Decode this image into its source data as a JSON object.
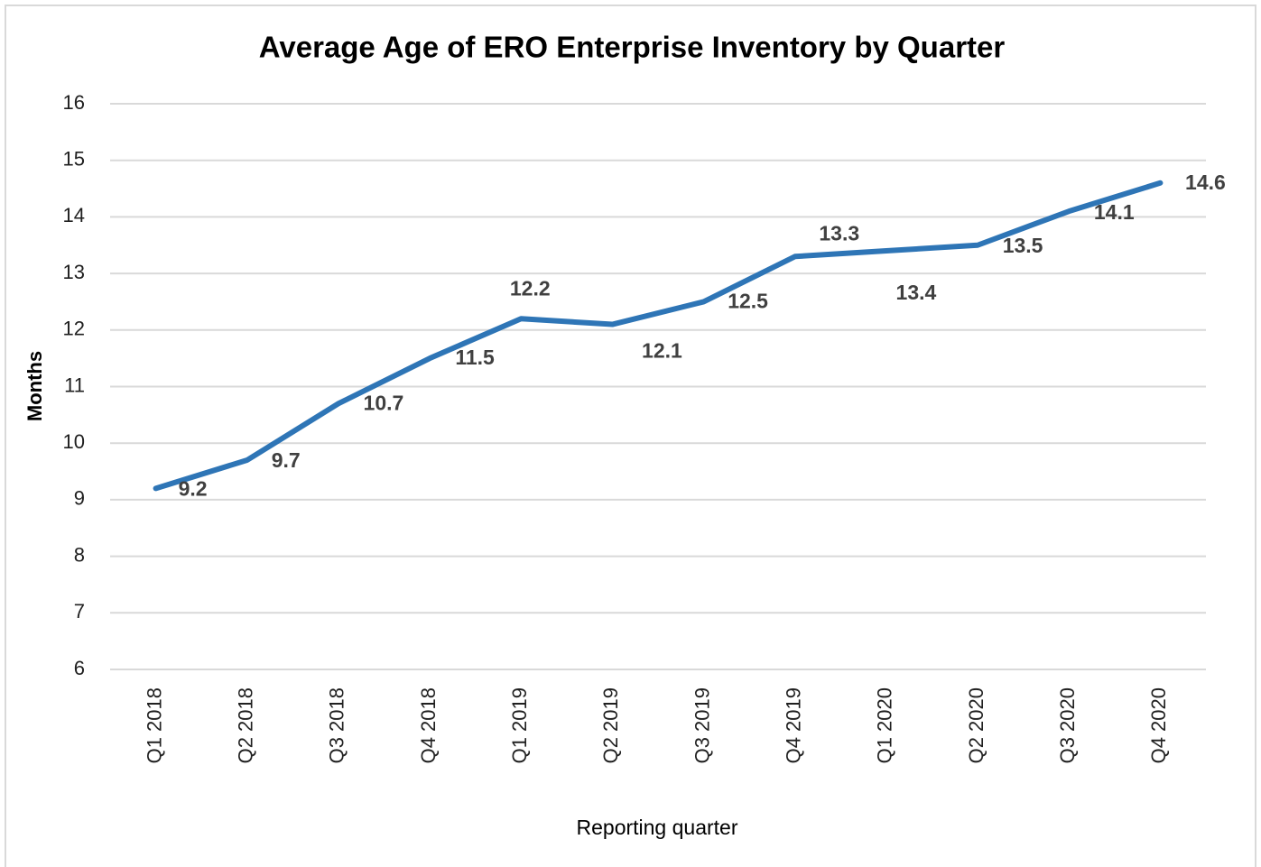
{
  "chart_data": {
    "type": "line",
    "title": "Average Age of ERO Enterprise Inventory by Quarter",
    "xlabel": "Reporting quarter",
    "ylabel": "Months",
    "categories": [
      "Q1 2018",
      "Q2 2018",
      "Q3 2018",
      "Q4 2018",
      "Q1 2019",
      "Q2 2019",
      "Q3 2019",
      "Q4 2019",
      "Q1 2020",
      "Q2 2020",
      "Q3 2020",
      "Q4 2020"
    ],
    "series": [
      {
        "name": "Months",
        "color": "#2e75b6",
        "values": [
          9.2,
          9.7,
          10.7,
          11.5,
          12.2,
          12.1,
          12.5,
          13.3,
          13.4,
          13.5,
          14.1,
          14.6
        ]
      }
    ],
    "ylim": [
      6,
      16
    ],
    "yticks": [
      6,
      7,
      8,
      9,
      10,
      11,
      12,
      13,
      14,
      15,
      16
    ],
    "grid": true
  }
}
